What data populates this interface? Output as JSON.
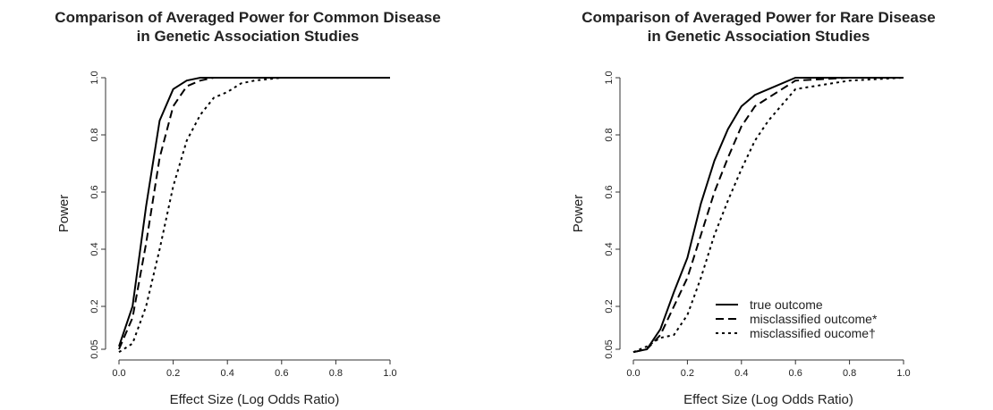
{
  "chart_data": [
    {
      "type": "line",
      "title": [
        "Comparison of Averaged Power for Common Disease",
        "in Genetic Association Studies"
      ],
      "xlabel": "Effect Size (Log Odds Ratio)",
      "ylabel": "Power",
      "x": [
        0,
        0.05,
        0.1,
        0.15,
        0.2,
        0.25,
        0.3,
        0.35,
        0.4,
        0.45,
        0.5,
        0.6,
        0.8,
        1.0
      ],
      "series": [
        {
          "name": "true outcome",
          "color": "#000000",
          "linestyle": "solid",
          "values": [
            0.06,
            0.2,
            0.55,
            0.85,
            0.96,
            0.99,
            1.0,
            1.0,
            1.0,
            1.0,
            1.0,
            1.0,
            1.0,
            1.0
          ]
        },
        {
          "name": "misclassified outcome*",
          "color": "#000000",
          "linestyle": "dashed",
          "values": [
            0.05,
            0.16,
            0.42,
            0.72,
            0.9,
            0.97,
            0.99,
            1.0,
            1.0,
            1.0,
            1.0,
            1.0,
            1.0,
            1.0
          ]
        },
        {
          "name": "misclassified oucome†",
          "color": "#000000",
          "linestyle": "dotted",
          "values": [
            0.04,
            0.07,
            0.2,
            0.4,
            0.62,
            0.78,
            0.87,
            0.93,
            0.95,
            0.98,
            0.99,
            1.0,
            1.0,
            1.0
          ]
        }
      ],
      "legend": false,
      "xlim": [
        0,
        1.0
      ],
      "xticks": [
        {
          "value": 0,
          "label": "0.0"
        },
        0.2,
        0.4,
        0.6,
        0.8,
        {
          "value": 1.0,
          "label": "1.0"
        }
      ],
      "ylim": [
        0.05,
        1.0
      ],
      "yticks": [
        0.05,
        0.2,
        0.4,
        0.6,
        0.8,
        {
          "value": 1.0,
          "label": "1.0"
        }
      ]
    },
    {
      "type": "line",
      "title": [
        "Comparison of Averaged Power for Rare Disease",
        "in Genetic Association Studies"
      ],
      "xlabel": "Effect Size (Log Odds Ratio)",
      "ylabel": "Power",
      "x": [
        0,
        0.05,
        0.1,
        0.15,
        0.2,
        0.25,
        0.3,
        0.35,
        0.4,
        0.45,
        0.5,
        0.6,
        0.8,
        1.0
      ],
      "series": [
        {
          "name": "true outcome",
          "color": "#000000",
          "linestyle": "solid",
          "values": [
            0.04,
            0.05,
            0.12,
            0.25,
            0.37,
            0.56,
            0.71,
            0.82,
            0.9,
            0.94,
            0.96,
            1.0,
            1.0,
            1.0
          ]
        },
        {
          "name": "misclassified outcome*",
          "color": "#000000",
          "linestyle": "dashed",
          "values": [
            0.04,
            0.05,
            0.1,
            0.2,
            0.3,
            0.45,
            0.6,
            0.72,
            0.83,
            0.9,
            0.93,
            0.99,
            1.0,
            1.0
          ]
        },
        {
          "name": "misclassified oucome†",
          "color": "#000000",
          "linestyle": "dotted",
          "values": [
            0.04,
            0.06,
            0.09,
            0.1,
            0.17,
            0.3,
            0.45,
            0.57,
            0.68,
            0.78,
            0.85,
            0.96,
            0.99,
            1.0
          ]
        }
      ],
      "legend": "bottom-right",
      "xlim": [
        0,
        1.0
      ],
      "xticks": [
        {
          "value": 0,
          "label": "0.0"
        },
        0.2,
        0.4,
        0.6,
        0.8,
        {
          "value": 1.0,
          "label": "1.0"
        }
      ],
      "ylim": [
        0.05,
        1.0
      ],
      "yticks": [
        0.05,
        0.2,
        0.4,
        0.6,
        0.8,
        {
          "value": 1.0,
          "label": "1.0"
        }
      ]
    }
  ]
}
